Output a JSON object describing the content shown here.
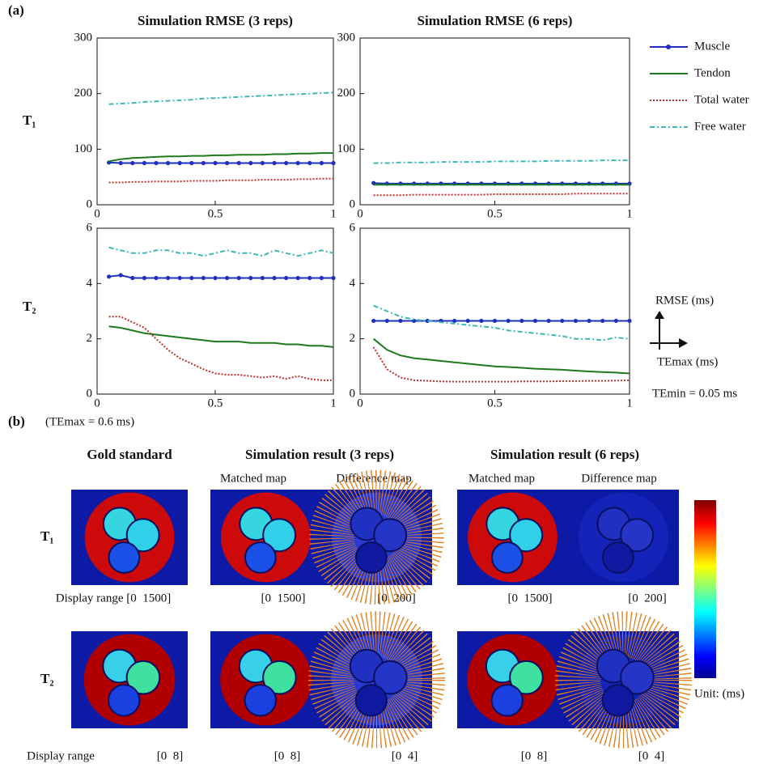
{
  "labels": {
    "a": "(a)",
    "b": "(b)",
    "temax_note": "(TEmax = 0.6 ms)",
    "y_arrow": "RMSE (ms)",
    "x_arrow": "TEmax (ms)",
    "temin": "TEmin = 0.05 ms"
  },
  "row_labels_a": [
    "T₁",
    "T₂"
  ],
  "chart_data": [
    {
      "type": "line",
      "title": "Simulation RMSE (3 reps)",
      "x": [
        0.05,
        0.1,
        0.15,
        0.2,
        0.25,
        0.3,
        0.35,
        0.4,
        0.45,
        0.5,
        0.55,
        0.6,
        0.65,
        0.7,
        0.75,
        0.8,
        0.85,
        0.9,
        0.95,
        1
      ],
      "xlim": [
        0,
        1
      ],
      "xticks": [
        0,
        0.5,
        1
      ],
      "ylim": [
        0,
        300
      ],
      "yticks": [
        0,
        100,
        200,
        300
      ],
      "series": [
        {
          "name": "Muscle",
          "color": "#1f2fbf",
          "style": "line-marker",
          "values": [
            76,
            75,
            75,
            75,
            75,
            75,
            75,
            75,
            75,
            75,
            75,
            75,
            75,
            75,
            75,
            75,
            75,
            75,
            75,
            75
          ]
        },
        {
          "name": "Tendon",
          "color": "#1d7a1d",
          "style": "solid",
          "values": [
            78,
            82,
            84,
            85,
            86,
            87,
            87,
            88,
            88,
            89,
            89,
            90,
            90,
            90,
            91,
            91,
            92,
            92,
            93,
            93
          ]
        },
        {
          "name": "Total water",
          "color": "#c0302a",
          "style": "dotted",
          "values": [
            40,
            40,
            41,
            41,
            42,
            42,
            42,
            43,
            43,
            43,
            44,
            44,
            44,
            45,
            45,
            45,
            46,
            46,
            47,
            47
          ]
        },
        {
          "name": "Free water",
          "color": "#3cb8b8",
          "style": "dashdot",
          "values": [
            181,
            182,
            183,
            185,
            186,
            187,
            188,
            189,
            191,
            192,
            193,
            194,
            195,
            196,
            197,
            198,
            199,
            200,
            201,
            202
          ]
        }
      ]
    },
    {
      "type": "line",
      "title": "Simulation RMSE (6 reps)",
      "x": [
        0.05,
        0.1,
        0.15,
        0.2,
        0.25,
        0.3,
        0.35,
        0.4,
        0.45,
        0.5,
        0.55,
        0.6,
        0.65,
        0.7,
        0.75,
        0.8,
        0.85,
        0.9,
        0.95,
        1
      ],
      "xlim": [
        0,
        1
      ],
      "xticks": [
        0,
        0.5,
        1
      ],
      "ylim": [
        0,
        300
      ],
      "yticks": [
        0,
        100,
        200,
        300
      ],
      "series": [
        {
          "color": "#1f2fbf",
          "style": "line-marker",
          "values": [
            39,
            38,
            38,
            38,
            38,
            38,
            38,
            38,
            38,
            38,
            38,
            38,
            38,
            38,
            38,
            38,
            38,
            38,
            38,
            38
          ]
        },
        {
          "color": "#1d7a1d",
          "style": "solid",
          "values": [
            36,
            36,
            36,
            36,
            36,
            36,
            36,
            36,
            36,
            36,
            36,
            36,
            36,
            36,
            36,
            36,
            36,
            36,
            36,
            36
          ]
        },
        {
          "color": "#c0302a",
          "style": "dotted",
          "values": [
            17,
            17,
            17,
            18,
            18,
            18,
            18,
            18,
            18,
            19,
            19,
            19,
            19,
            19,
            19,
            20,
            20,
            20,
            20,
            20
          ]
        },
        {
          "color": "#3cb8b8",
          "style": "dashdot",
          "values": [
            75,
            75,
            76,
            76,
            76,
            77,
            77,
            77,
            77,
            78,
            78,
            78,
            78,
            79,
            79,
            79,
            79,
            80,
            80,
            80
          ]
        }
      ]
    },
    {
      "type": "line",
      "x": [
        0.05,
        0.1,
        0.15,
        0.2,
        0.25,
        0.3,
        0.35,
        0.4,
        0.45,
        0.5,
        0.55,
        0.6,
        0.65,
        0.7,
        0.75,
        0.8,
        0.85,
        0.9,
        0.95,
        1
      ],
      "xlim": [
        0,
        1
      ],
      "xticks": [
        0,
        0.5,
        1
      ],
      "ylim": [
        0,
        6
      ],
      "yticks": [
        0,
        2,
        4,
        6
      ],
      "series": [
        {
          "color": "#1f2fbf",
          "style": "line-marker",
          "values": [
            4.25,
            4.3,
            4.2,
            4.2,
            4.2,
            4.2,
            4.2,
            4.2,
            4.2,
            4.2,
            4.2,
            4.2,
            4.2,
            4.2,
            4.2,
            4.2,
            4.2,
            4.2,
            4.2,
            4.2
          ]
        },
        {
          "color": "#1d7a1d",
          "style": "solid",
          "values": [
            2.45,
            2.4,
            2.3,
            2.2,
            2.15,
            2.1,
            2.05,
            2.0,
            1.95,
            1.9,
            1.9,
            1.9,
            1.85,
            1.85,
            1.85,
            1.8,
            1.8,
            1.75,
            1.75,
            1.7
          ]
        },
        {
          "color": "#c0302a",
          "style": "dotted",
          "values": [
            2.8,
            2.8,
            2.6,
            2.4,
            2.0,
            1.6,
            1.3,
            1.1,
            0.9,
            0.75,
            0.7,
            0.7,
            0.65,
            0.6,
            0.65,
            0.55,
            0.65,
            0.55,
            0.5,
            0.5
          ]
        },
        {
          "color": "#3cb8b8",
          "style": "dashdot",
          "values": [
            5.3,
            5.2,
            5.1,
            5.1,
            5.2,
            5.2,
            5.1,
            5.1,
            5.0,
            5.1,
            5.2,
            5.1,
            5.1,
            5.0,
            5.2,
            5.1,
            5.0,
            5.1,
            5.2,
            5.1
          ]
        }
      ]
    },
    {
      "type": "line",
      "x": [
        0.05,
        0.1,
        0.15,
        0.2,
        0.25,
        0.3,
        0.35,
        0.4,
        0.45,
        0.5,
        0.55,
        0.6,
        0.65,
        0.7,
        0.75,
        0.8,
        0.85,
        0.9,
        0.95,
        1
      ],
      "xlim": [
        0,
        1
      ],
      "xticks": [
        0,
        0.5,
        1
      ],
      "ylim": [
        0,
        6
      ],
      "yticks": [
        0,
        2,
        4,
        6
      ],
      "series": [
        {
          "color": "#1f2fbf",
          "style": "line-marker",
          "values": [
            2.65,
            2.65,
            2.65,
            2.65,
            2.65,
            2.65,
            2.65,
            2.65,
            2.65,
            2.65,
            2.65,
            2.65,
            2.65,
            2.65,
            2.65,
            2.65,
            2.65,
            2.65,
            2.65,
            2.65
          ]
        },
        {
          "color": "#1d7a1d",
          "style": "solid",
          "values": [
            2.0,
            1.6,
            1.4,
            1.3,
            1.25,
            1.2,
            1.15,
            1.1,
            1.05,
            1.0,
            0.98,
            0.95,
            0.92,
            0.9,
            0.88,
            0.85,
            0.82,
            0.8,
            0.78,
            0.75
          ]
        },
        {
          "color": "#c0302a",
          "style": "dotted",
          "values": [
            1.7,
            0.9,
            0.6,
            0.5,
            0.48,
            0.46,
            0.45,
            0.45,
            0.45,
            0.45,
            0.45,
            0.46,
            0.46,
            0.46,
            0.47,
            0.47,
            0.48,
            0.48,
            0.49,
            0.5
          ]
        },
        {
          "color": "#3cb8b8",
          "style": "dashdot",
          "values": [
            3.2,
            3.0,
            2.8,
            2.7,
            2.65,
            2.6,
            2.55,
            2.5,
            2.45,
            2.4,
            2.3,
            2.25,
            2.2,
            2.15,
            2.1,
            2.0,
            2.0,
            1.95,
            2.05,
            2.0
          ]
        }
      ]
    }
  ],
  "panel_b": {
    "columns": [
      {
        "title": "Gold standard"
      },
      {
        "title": "Simulation result (3 reps)",
        "maps": [
          "Matched map",
          "Difference map"
        ]
      },
      {
        "title": "Simulation result (6 reps)",
        "maps": [
          "Matched map",
          "Difference map"
        ]
      }
    ],
    "row_labels": [
      "T₁",
      "T₂"
    ],
    "ranges": [
      [
        "Display range [0  1500]",
        "[0  1500]",
        "[0  200]",
        "[0  1500]",
        "[0  200]"
      ],
      [
        "Display range",
        "[0  8]",
        "[0  8]",
        "[0  4]",
        "[0  8]",
        "[0  4]"
      ]
    ],
    "unit": "Unit: (ms)"
  }
}
